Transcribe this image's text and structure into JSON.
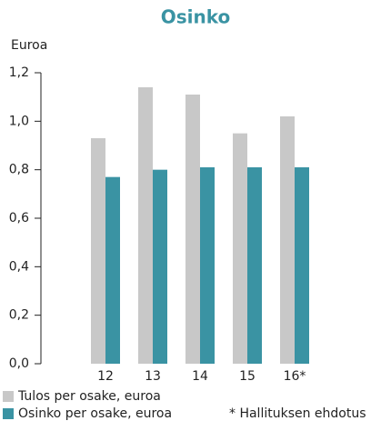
{
  "chart_data": {
    "type": "bar",
    "title": "Osinko",
    "y_label": "Euroa",
    "categories": [
      "12",
      "13",
      "14",
      "15",
      "16*"
    ],
    "series": [
      {
        "name": "Tulos per osake, euroa",
        "color": "#c8c8c8",
        "values": [
          0.93,
          1.14,
          1.11,
          0.95,
          1.02
        ]
      },
      {
        "name": "Osinko per osake, euroa",
        "color": "#3a93a3",
        "values": [
          0.77,
          0.8,
          0.81,
          0.81,
          0.81
        ]
      }
    ],
    "ylim": [
      0,
      1.2
    ],
    "yticks": [
      {
        "value": 0,
        "label": "0,0"
      },
      {
        "value": 0.2,
        "label": "0,2"
      },
      {
        "value": 0.4,
        "label": "0,4"
      },
      {
        "value": 0.6,
        "label": "0,6"
      },
      {
        "value": 0.8,
        "label": "0,8"
      },
      {
        "value": 1.0,
        "label": "1,0"
      },
      {
        "value": 1.2,
        "label": "1,2"
      }
    ],
    "annotation": "* Hallituksen ehdotus"
  }
}
